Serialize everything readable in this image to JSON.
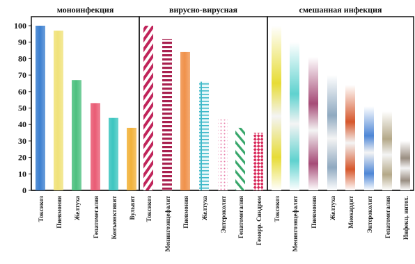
{
  "chart_data": {
    "type": "bar",
    "title": "",
    "xlabel": "",
    "ylabel": "",
    "ylim": [
      0,
      100
    ],
    "yticks": [
      0,
      10,
      20,
      30,
      40,
      50,
      60,
      70,
      80,
      90,
      100
    ],
    "grid": false,
    "groups": [
      {
        "name": "моноинфекция",
        "bars": [
          {
            "label": "Токсикоз",
            "value": 100,
            "color": "#3b7fd0",
            "pattern": "solid"
          },
          {
            "label": "Пневмония",
            "value": 97,
            "color": "#f0e27a",
            "pattern": "solid"
          },
          {
            "label": "Желтуха",
            "value": 67,
            "color": "#4cc07f",
            "pattern": "solid"
          },
          {
            "label": "Гепатомегалия",
            "value": 53,
            "color": "#e95b74",
            "pattern": "solid"
          },
          {
            "label": "Конъюнктивит",
            "value": 44,
            "color": "#3cc5c0",
            "pattern": "solid"
          },
          {
            "label": "Вульвит",
            "value": 38,
            "color": "#f2b23a",
            "pattern": "solid"
          }
        ]
      },
      {
        "name": "вирусно-вирусная",
        "bars": [
          {
            "label": "Токсикоз",
            "value": 100,
            "color": "#c0245a",
            "pattern": "diagonal"
          },
          {
            "label": "Менингоэнцефалит",
            "value": 92,
            "color": "#a8204e",
            "pattern": "dashed"
          },
          {
            "label": "Пневмония",
            "value": 84,
            "color": "#f0914a",
            "pattern": "solid"
          },
          {
            "label": "Желтуха",
            "value": 66,
            "color": "#3fb9c9",
            "pattern": "ladder"
          },
          {
            "label": "Энтероколит",
            "value": 43,
            "color": "#e878a6",
            "pattern": "dotted"
          },
          {
            "label": "Гепатомегалия",
            "value": 38,
            "color": "#37a66a",
            "pattern": "diagonal"
          },
          {
            "label": "Геморр. Синдром",
            "value": 35,
            "color": "#d8285a",
            "pattern": "checker"
          }
        ]
      },
      {
        "name": "смешанная инфекция",
        "bars": [
          {
            "label": "Токсикоз",
            "value": 100,
            "color": "#e7dc36",
            "pattern": "gradient"
          },
          {
            "label": "Менингоэнцефалит",
            "value": 90,
            "color": "#5fd2cf",
            "pattern": "gradient"
          },
          {
            "label": "Пневмония",
            "value": 81,
            "color": "#a64b77",
            "pattern": "gradient"
          },
          {
            "label": "Желтуха",
            "value": 70,
            "color": "#8fa9c0",
            "pattern": "gradient"
          },
          {
            "label": "Миокардит",
            "value": 64,
            "color": "#d6572c",
            "pattern": "gradient"
          },
          {
            "label": "Энтероколит",
            "value": 51,
            "color": "#4e86d6",
            "pattern": "gradient"
          },
          {
            "label": "Гепатомегалия",
            "value": 48,
            "color": "#b4a888",
            "pattern": "gradient"
          },
          {
            "label": "Инфекц. интох.",
            "value": 30,
            "color": "#9a8e82",
            "pattern": "gradient"
          }
        ]
      }
    ]
  }
}
